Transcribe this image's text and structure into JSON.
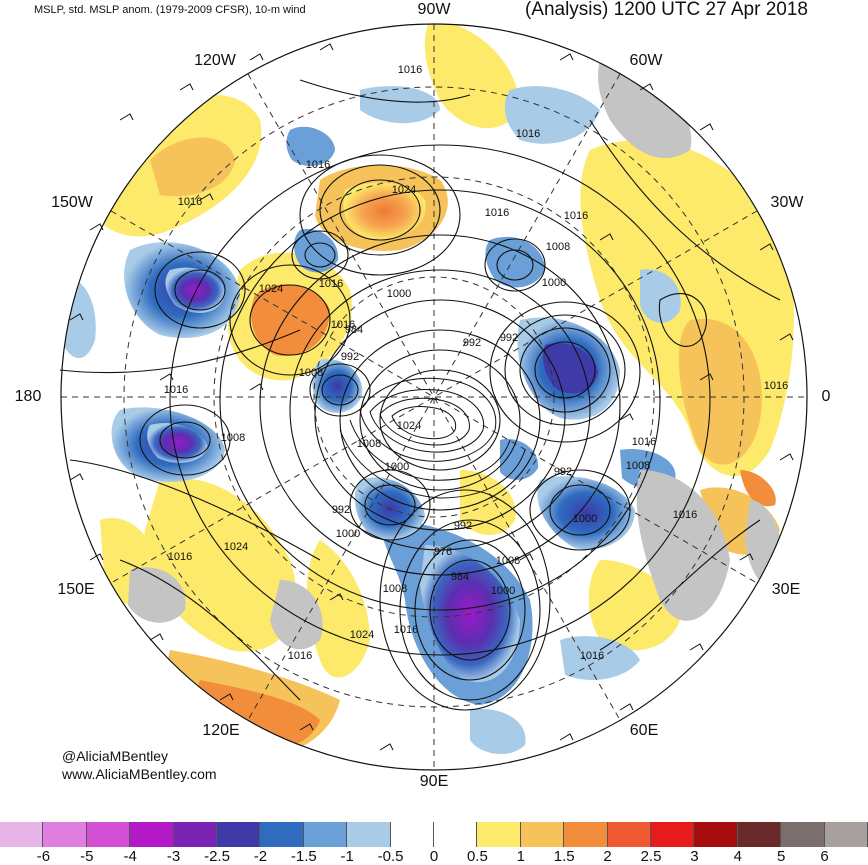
{
  "header": {
    "left_title": "MSLP, std. MSLP anom. (1979-2009 CFSR), 10-m wind",
    "right_title": "(Analysis) 1200 UTC 27 Apr 2018"
  },
  "longitude_labels": {
    "lon_90w": "90W",
    "lon_60w": "60W",
    "lon_30w": "30W",
    "lon_0": "0",
    "lon_30e": "30E",
    "lon_60e": "60E",
    "lon_90e": "90E",
    "lon_120e": "120E",
    "lon_150e": "150E",
    "lon_180": "180",
    "lon_150w": "150W",
    "lon_120w": "120W"
  },
  "contour_labels": [
    "1016",
    "1016",
    "1016",
    "1016",
    "1016",
    "1024",
    "1016",
    "1008",
    "1000",
    "1024",
    "1016",
    "1016",
    "1000",
    "984",
    "992",
    "992",
    "992",
    "1008",
    "1016",
    "1008",
    "1024",
    "1008",
    "1000",
    "992",
    "1016",
    "1008",
    "992",
    "1000",
    "992",
    "1000",
    "1024",
    "1016",
    "976",
    "984",
    "1008",
    "1000",
    "1008",
    "1016",
    "1024",
    "1016",
    "1016",
    "1016",
    "1016"
  ],
  "credits": {
    "author": "@AliciaMBentley",
    "website": "www.AliciaMBentley.com"
  },
  "colorbar": {
    "colors": [
      "#e6b4e6",
      "#e07de0",
      "#d34fd3",
      "#b419c8",
      "#7a23b4",
      "#3e3aa8",
      "#2f6cc0",
      "#6a9fd8",
      "#a8cbe8",
      "#ffffff",
      "#ffffff",
      "#fde96a",
      "#f5c35a",
      "#f28e3b",
      "#ef5a33",
      "#e81a1a",
      "#a80d0d",
      "#6a2a2a",
      "#7d6e6e",
      "#a89f9f"
    ],
    "labels": [
      "-6",
      "-5",
      "-4",
      "-3",
      "-2.5",
      "-2",
      "-1.5",
      "-1",
      "-0.5",
      "0",
      "0.5",
      "1",
      "1.5",
      "2",
      "2.5",
      "3",
      "4",
      "5",
      "6"
    ]
  }
}
